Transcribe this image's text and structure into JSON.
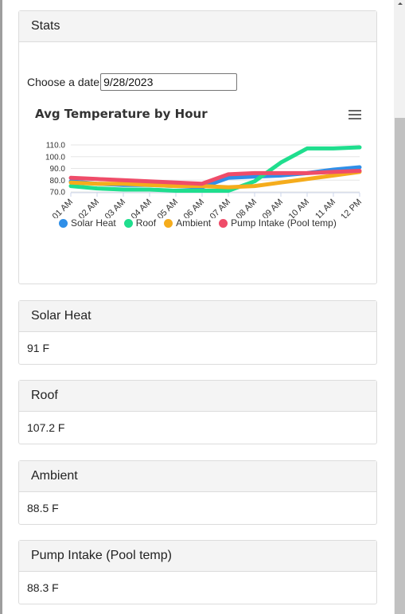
{
  "stats": {
    "title": "Stats",
    "date_label": "Choose a date",
    "date_value": "9/28/2023",
    "chart_title": "Avg Temperature by Hour"
  },
  "chart_data": {
    "type": "line",
    "title": "Avg Temperature by Hour",
    "categories": [
      "01 AM",
      "02 AM",
      "03 AM",
      "04 AM",
      "05 AM",
      "06 AM",
      "07 AM",
      "08 AM",
      "09 AM",
      "10 AM",
      "11 AM",
      "12 PM"
    ],
    "yticks": [
      "110.0",
      "100.0",
      "90.0",
      "80.0",
      "70.0"
    ],
    "ylim": [
      70,
      110
    ],
    "legend_position": "bottom",
    "series": [
      {
        "name": "Solar Heat",
        "color": "#2f8fe8",
        "values": [
          79,
          77,
          76,
          76,
          75,
          74,
          82,
          83,
          84,
          86,
          89,
          91
        ]
      },
      {
        "name": "Roof",
        "color": "#1fde8e",
        "values": [
          75,
          73,
          72,
          72,
          71,
          71,
          71,
          79,
          95,
          107,
          107,
          108
        ]
      },
      {
        "name": "Ambient",
        "color": "#f5ac1c",
        "values": [
          78,
          77,
          77,
          76,
          75,
          75,
          74,
          75,
          78,
          81,
          84,
          87
        ]
      },
      {
        "name": "Pump Intake (Pool temp)",
        "color": "#ef4c69",
        "values": [
          82,
          81,
          80,
          79,
          78,
          77,
          85,
          86,
          86,
          86,
          87,
          88
        ]
      }
    ]
  },
  "sensors": [
    {
      "title": "Solar Heat",
      "value": "91 F"
    },
    {
      "title": "Roof",
      "value": "107.2 F"
    },
    {
      "title": "Ambient",
      "value": "88.5 F"
    },
    {
      "title": "Pump Intake (Pool temp)",
      "value": "88.3 F"
    }
  ]
}
